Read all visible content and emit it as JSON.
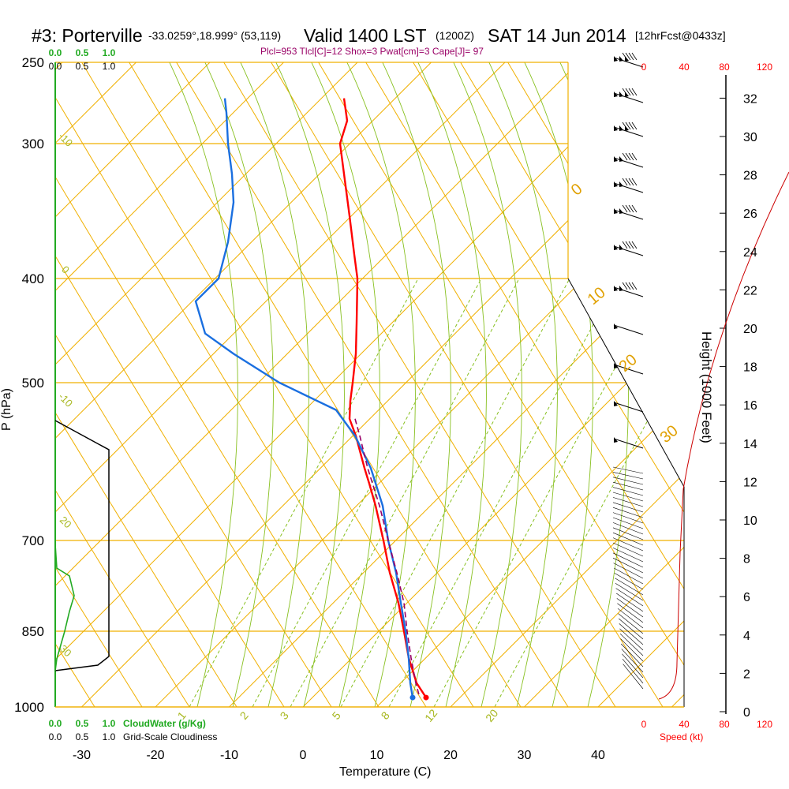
{
  "header": {
    "station": "#3: Porterville",
    "coords": "-33.0259°,18.999° (53,119)",
    "valid": "Valid 1400 LST",
    "utc": "(1200Z)",
    "date": "SAT 14 Jun 2014",
    "forecast": "[12hrFcst@0433z]",
    "indices": "Plcl=953 Tlcl[C]=12 Shox=3 Pwat[cm]=3 Cape[J]= 97"
  },
  "colors": {
    "temperature": "#ff0000",
    "dewpoint": "#1a6fe0",
    "parcel": "#990066",
    "isotherm": "#f0b000",
    "dry_adiabat": "#88c020",
    "mixing_ratio": "#88c020",
    "cloud_water": "#22aa22",
    "wind_speed": "#cc0000"
  },
  "labels": {
    "xlabel": "Temperature (C)",
    "ylabel": "P (hPa)",
    "height_label": "Height (1000 Feet)",
    "speed_label": "Speed (kt)",
    "cloud_water_label": "CloudWater (g/Kg)",
    "cloudiness_label": "Grid-Scale Cloudiness",
    "cloud_scale": [
      "0.0",
      "0.5",
      "1.0"
    ]
  },
  "chart_data": {
    "type": "line",
    "title": "#3: Porterville  Valid 1400 LST (1200Z) SAT 14 Jun 2014",
    "x_axis": {
      "label": "Temperature (C)",
      "ticks": [
        -30,
        -20,
        -10,
        0,
        10,
        20,
        30,
        40
      ],
      "range": [
        -33,
        45
      ]
    },
    "y_axis": {
      "label": "P (hPa)",
      "ticks": [
        250,
        300,
        400,
        500,
        700,
        850,
        1000
      ],
      "range": [
        1000,
        250
      ],
      "scale": "log"
    },
    "height_axis": {
      "label": "Height (1000 Feet)",
      "ticks": [
        0,
        2,
        4,
        6,
        8,
        10,
        12,
        14,
        16,
        18,
        20,
        22,
        24,
        26,
        28,
        30,
        32
      ]
    },
    "speed_axis": {
      "label": "Speed (kt)",
      "ticks": [
        0,
        40,
        80,
        120
      ]
    },
    "series": [
      {
        "name": "Temperature",
        "points": [
          [
            271,
            436
          ],
          [
            285,
            440
          ],
          [
            300,
            431
          ],
          [
            320,
            436
          ],
          [
            350,
            443
          ],
          [
            380,
            449
          ],
          [
            400,
            453
          ],
          [
            440,
            452
          ],
          [
            470,
            451
          ],
          [
            500,
            447
          ],
          [
            520,
            444
          ],
          [
            540,
            443
          ],
          [
            560,
            451
          ],
          [
            600,
            462
          ],
          [
            620,
            468
          ],
          [
            650,
            476
          ],
          [
            700,
            486
          ],
          [
            750,
            494
          ],
          [
            800,
            505
          ],
          [
            850,
            512
          ],
          [
            900,
            518
          ],
          [
            950,
            528
          ],
          [
            980,
            540
          ]
        ]
      },
      {
        "name": "Dewpoint",
        "points": [
          [
            271,
            285
          ],
          [
            280,
            287
          ],
          [
            300,
            289
          ],
          [
            320,
            294
          ],
          [
            340,
            296
          ],
          [
            370,
            289
          ],
          [
            400,
            277
          ],
          [
            420,
            248
          ],
          [
            450,
            260
          ],
          [
            470,
            296
          ],
          [
            500,
            354
          ],
          [
            530,
            426
          ],
          [
            560,
            450
          ],
          [
            600,
            470
          ],
          [
            650,
            485
          ],
          [
            700,
            492
          ],
          [
            750,
            502
          ],
          [
            800,
            508
          ],
          [
            850,
            514
          ],
          [
            900,
            518
          ],
          [
            950,
            520
          ],
          [
            980,
            523
          ]
        ]
      },
      {
        "name": "Parcel",
        "points": [
          [
            540,
            450
          ],
          [
            560,
            456
          ],
          [
            600,
            466
          ],
          [
            650,
            481
          ],
          [
            700,
            492
          ],
          [
            750,
            503
          ],
          [
            800,
            512
          ],
          [
            850,
            516
          ],
          [
            900,
            521
          ],
          [
            950,
            527
          ],
          [
            980,
            532
          ]
        ]
      }
    ],
    "isotherm_labels": [
      "-10",
      "0",
      "10",
      "20",
      "30",
      "-10",
      "20",
      "30"
    ],
    "dry_adiabat_labels": [
      "0",
      "10",
      "20",
      "30"
    ],
    "mixing_ratio_labels": [
      "1",
      "2",
      "3",
      "5",
      "8",
      "12",
      "20"
    ]
  }
}
